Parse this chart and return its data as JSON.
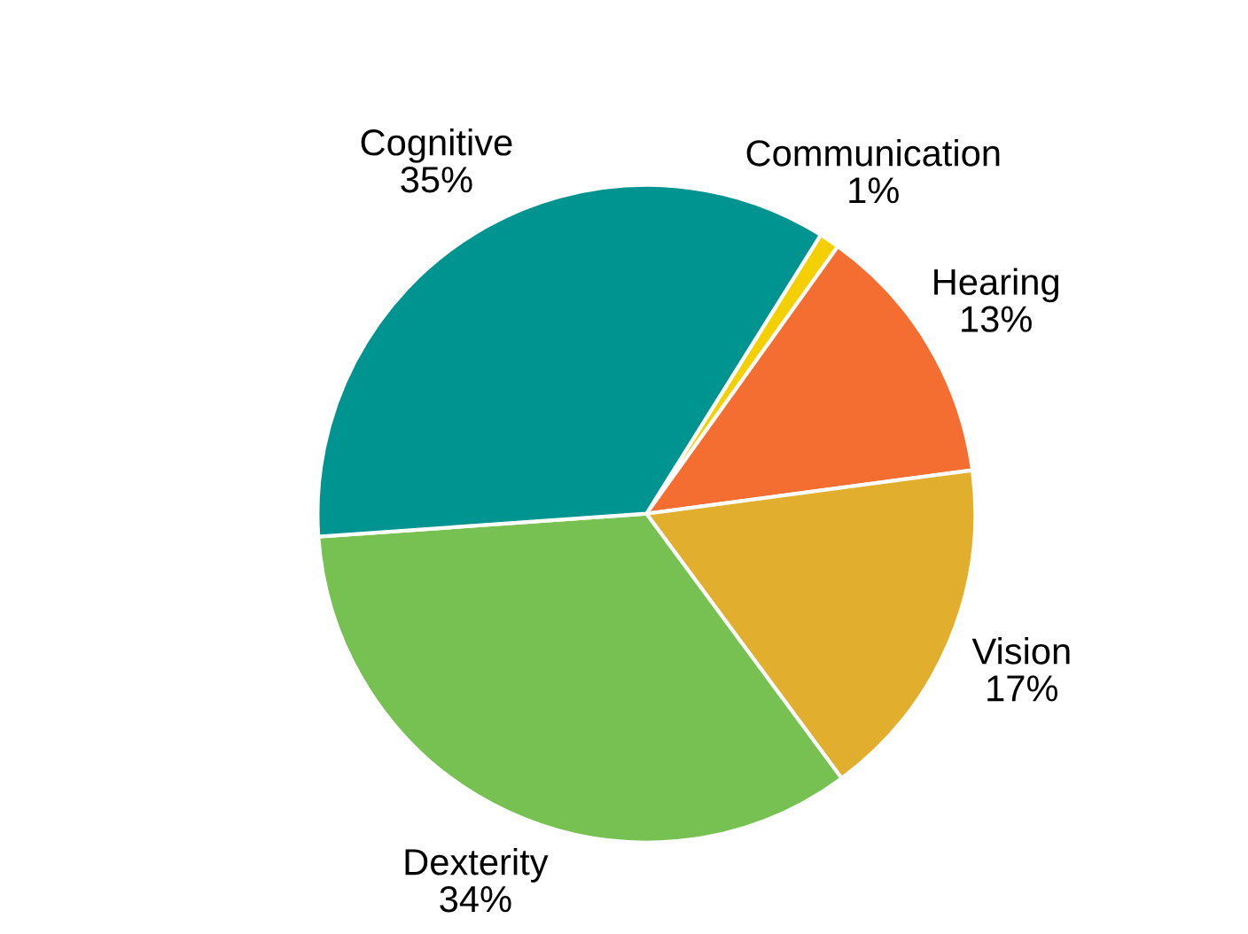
{
  "chart_data": {
    "type": "pie",
    "categories": [
      "Communication",
      "Hearing",
      "Vision",
      "Dexterity",
      "Cognitive"
    ],
    "values": [
      1,
      13,
      17,
      34,
      35
    ],
    "colors": [
      "#f5d000",
      "#f46e32",
      "#e2ae2e",
      "#76c151",
      "#009490"
    ],
    "value_labels": [
      "1%",
      "13%",
      "17%",
      "34%",
      "35%"
    ]
  }
}
